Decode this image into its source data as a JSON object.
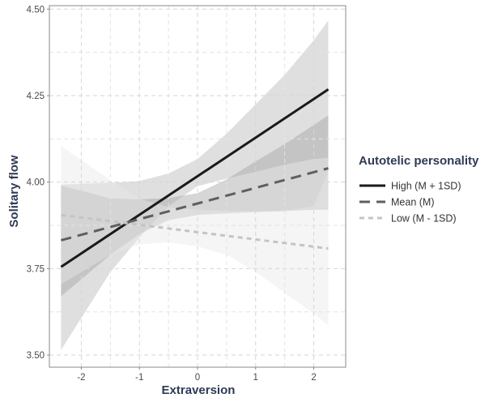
{
  "chart_data": {
    "type": "line",
    "title": "",
    "xlabel": "Extraversion",
    "ylabel": "Solitary flow",
    "xlim": [
      -2.55,
      2.55
    ],
    "ylim": [
      3.465,
      4.51
    ],
    "x_ticks": [
      -2,
      -1,
      0,
      1,
      2
    ],
    "x_tick_labels": [
      "-2",
      "-1",
      "0",
      "1",
      "2"
    ],
    "y_ticks": [
      3.5,
      3.75,
      4.0,
      4.25,
      4.5
    ],
    "y_tick_labels": [
      "3.50",
      "3.75",
      "4.00",
      "4.25",
      "4.50"
    ],
    "grid": true,
    "legend": {
      "title": "Autotelic personality",
      "placement": "right"
    },
    "series": [
      {
        "name": "High (M + 1SD)",
        "color": "#1a1a1a",
        "line_style": "solid",
        "band_color": "#b8b8b8",
        "x": [
          -2.35,
          2.25
        ],
        "y": [
          3.755,
          4.268
        ],
        "band": {
          "x": [
            -2.35,
            -1.5,
            -1.0,
            -0.5,
            0,
            0.5,
            1.0,
            1.5,
            2.0,
            2.25
          ],
          "lower": [
            3.515,
            3.74,
            3.84,
            3.93,
            3.988,
            4.01,
            4.03,
            4.05,
            4.067,
            4.07
          ],
          "upper": [
            3.993,
            3.998,
            4.003,
            4.025,
            4.067,
            4.14,
            4.225,
            4.31,
            4.41,
            4.467
          ]
        }
      },
      {
        "name": "Mean (M)",
        "color": "#5f5f5f",
        "line_style": "dashed",
        "band_color": "#a5a5a5",
        "x": [
          -2.35,
          2.25
        ],
        "y": [
          3.832,
          4.04
        ],
        "band": {
          "x": [
            -2.35,
            -1.5,
            -1.0,
            -0.5,
            0,
            0.5,
            1.0,
            1.5,
            2.0,
            2.25
          ],
          "lower": [
            3.67,
            3.79,
            3.85,
            3.89,
            3.905,
            3.91,
            3.913,
            3.916,
            3.92,
            3.92
          ],
          "upper": [
            3.99,
            3.953,
            3.95,
            3.954,
            3.968,
            4.008,
            4.06,
            4.11,
            4.165,
            4.193
          ]
        }
      },
      {
        "name": "Low  (M - 1SD)",
        "color": "#c4c4c4",
        "line_style": "dotted",
        "band_color": "#e8e8e8",
        "x": [
          -2.35,
          2.25
        ],
        "y": [
          3.905,
          3.808
        ],
        "band": {
          "x": [
            -2.35,
            -1.5,
            -1.0,
            -0.5,
            0,
            0.5,
            1.0,
            1.5,
            2.0,
            2.25
          ],
          "lower": [
            3.705,
            3.79,
            3.82,
            3.826,
            3.814,
            3.79,
            3.74,
            3.68,
            3.62,
            3.585
          ],
          "upper": [
            4.104,
            4.006,
            3.952,
            3.928,
            3.92,
            3.917,
            3.916,
            3.918,
            3.93,
            4.03
          ]
        }
      }
    ]
  }
}
